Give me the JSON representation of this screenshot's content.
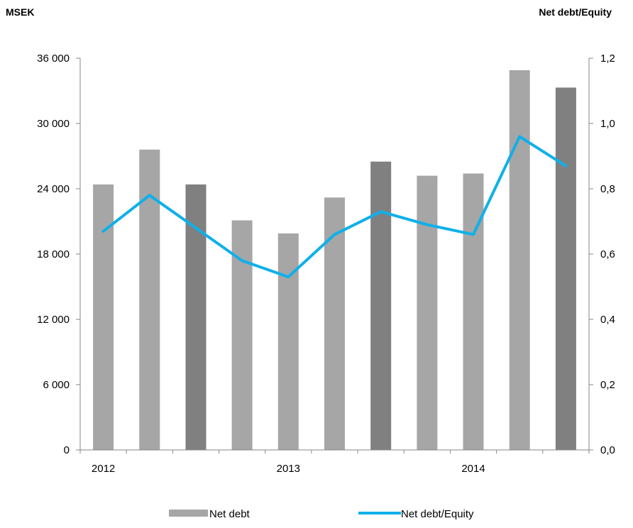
{
  "chart_data": {
    "type": "bar",
    "y_left_title": "MSEK",
    "y_right_title": "Net debt/Equity",
    "x_tick_labels": [
      "2012",
      "2013",
      "2014"
    ],
    "y_left_ticks": [
      "0",
      "6 000",
      "12 000",
      "18 000",
      "24 000",
      "30 000",
      "36 000"
    ],
    "y_right_ticks": [
      "0,0",
      "0,2",
      "0,4",
      "0,6",
      "0,8",
      "1,0",
      "1,2"
    ],
    "ylim_left": [
      0,
      36000
    ],
    "ylim_right": [
      0,
      1.2
    ],
    "grid": false,
    "legend_position": "bottom",
    "series": [
      {
        "name": "Net debt",
        "kind": "bar",
        "axis": "left",
        "color": "#a6a6a6",
        "highlight_color": "#808080",
        "values": [
          24400,
          27600,
          24400,
          21100,
          19900,
          23200,
          26500,
          25200,
          25400,
          34900,
          33300
        ],
        "highlight": [
          false,
          false,
          true,
          false,
          false,
          false,
          true,
          false,
          false,
          false,
          true
        ]
      },
      {
        "name": "Net debt/Equity",
        "kind": "line",
        "axis": "right",
        "color": "#0fb0ea",
        "values": [
          0.67,
          0.78,
          0.68,
          0.58,
          0.53,
          0.66,
          0.73,
          0.69,
          0.66,
          0.96,
          0.87
        ]
      }
    ]
  }
}
